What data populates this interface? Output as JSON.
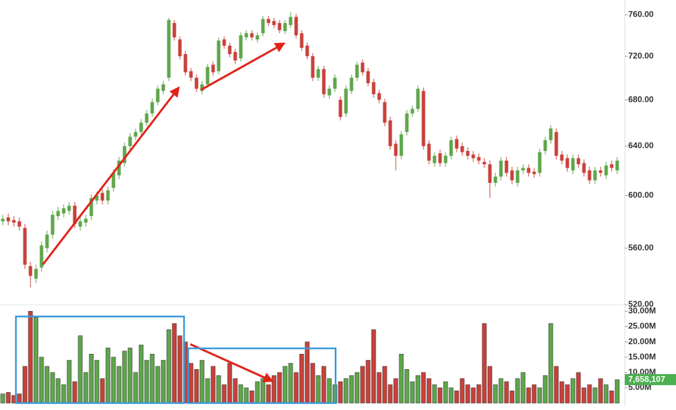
{
  "chart_data": {
    "type": "candlestick",
    "log_y": true,
    "up_color": "#5ea64b",
    "down_color": "#c9413a",
    "ylim": [
      520,
      775
    ],
    "yticks": [
      {
        "value": 520,
        "label": "520.00"
      },
      {
        "value": 560,
        "label": "560.00"
      },
      {
        "value": 600,
        "label": "600.00"
      },
      {
        "value": 640,
        "label": "640.00"
      },
      {
        "value": 680,
        "label": "680.00"
      },
      {
        "value": 720,
        "label": "720.00"
      },
      {
        "value": 760,
        "label": "760.00"
      }
    ],
    "vol_ylim": [
      0,
      31
    ],
    "vol_yticks": [
      {
        "value": 5,
        "label": "5.00M"
      },
      {
        "value": 10,
        "label": "10.00M"
      },
      {
        "value": 15,
        "label": "15.00M"
      },
      {
        "value": 20,
        "label": "20.00M"
      },
      {
        "value": 25,
        "label": "25.00M"
      },
      {
        "value": 30,
        "label": "30.00M"
      }
    ],
    "volume_last_label": "7,658,107",
    "open": [
      580,
      583,
      581,
      580,
      575,
      547,
      538,
      546,
      560,
      570,
      584,
      586,
      588,
      592,
      576,
      579,
      584,
      596,
      602,
      596,
      606,
      616,
      626,
      640,
      648,
      652,
      660,
      668,
      678,
      688,
      700,
      752,
      736,
      722,
      706,
      700,
      688,
      694,
      712,
      706,
      736,
      730,
      724,
      718,
      738,
      742,
      736,
      742,
      756,
      754,
      752,
      744,
      750,
      758,
      742,
      730,
      720,
      700,
      708,
      684,
      690,
      680,
      668,
      688,
      700,
      714,
      706,
      696,
      686,
      678,
      662,
      642,
      632,
      652,
      668,
      672,
      688,
      642,
      626,
      634,
      626,
      632,
      646,
      640,
      636,
      633,
      631,
      627,
      625,
      610,
      615,
      628,
      620,
      610,
      620,
      622,
      619,
      618,
      636,
      645,
      652,
      633,
      630,
      620,
      630,
      626,
      620,
      612,
      620,
      616,
      625,
      620
    ],
    "high": [
      585,
      586,
      584,
      583,
      578,
      550,
      548,
      565,
      573,
      588,
      591,
      593,
      595,
      595,
      583,
      585,
      601,
      603,
      605,
      607,
      621,
      631,
      643,
      651,
      655,
      663,
      671,
      681,
      693,
      697,
      757,
      755,
      739,
      725,
      709,
      703,
      697,
      713,
      715,
      738,
      739,
      733,
      727,
      743,
      745,
      745,
      743,
      759,
      759,
      757,
      755,
      755,
      763,
      761,
      745,
      733,
      723,
      711,
      711,
      693,
      703,
      683,
      693,
      703,
      715,
      717,
      709,
      699,
      689,
      681,
      665,
      645,
      653,
      671,
      675,
      693,
      691,
      645,
      635,
      637,
      635,
      648,
      649,
      643,
      639,
      636,
      634,
      630,
      628,
      618,
      631,
      631,
      623,
      623,
      625,
      625,
      622,
      638,
      648,
      658,
      655,
      636,
      633,
      633,
      633,
      629,
      623,
      623,
      623,
      627,
      628,
      631
    ],
    "low": [
      577,
      577,
      576,
      573,
      545,
      532,
      535,
      543,
      557,
      567,
      581,
      583,
      585,
      575,
      573,
      576,
      581,
      593,
      593,
      593,
      603,
      613,
      623,
      637,
      645,
      649,
      657,
      665,
      675,
      685,
      697,
      735,
      717,
      702,
      697,
      687,
      685,
      691,
      702,
      703,
      727,
      719,
      713,
      715,
      735,
      735,
      733,
      739,
      749,
      747,
      742,
      741,
      747,
      737,
      725,
      717,
      697,
      697,
      682,
      681,
      687,
      662,
      665,
      685,
      697,
      702,
      692,
      682,
      677,
      657,
      637,
      620,
      629,
      649,
      665,
      669,
      637,
      625,
      623,
      623,
      623,
      629,
      635,
      632,
      629,
      627,
      625,
      622,
      598,
      607,
      612,
      615,
      609,
      607,
      617,
      615,
      614,
      615,
      633,
      642,
      629,
      625,
      619,
      617,
      622,
      615,
      609,
      609,
      615,
      613,
      619,
      617
    ],
    "close": [
      582,
      580,
      579,
      576,
      548,
      540,
      545,
      562,
      570,
      585,
      588,
      590,
      592,
      578,
      580,
      582,
      598,
      600,
      596,
      604,
      618,
      628,
      640,
      648,
      652,
      660,
      668,
      678,
      690,
      694,
      755,
      738,
      720,
      705,
      700,
      690,
      694,
      710,
      705,
      735,
      730,
      722,
      716,
      740,
      742,
      738,
      740,
      756,
      752,
      750,
      745,
      752,
      758,
      740,
      728,
      720,
      700,
      708,
      685,
      690,
      700,
      665,
      690,
      700,
      712,
      705,
      695,
      685,
      680,
      660,
      640,
      632,
      650,
      668,
      672,
      690,
      640,
      628,
      632,
      626,
      632,
      645,
      638,
      635,
      632,
      630,
      628,
      625,
      610,
      615,
      628,
      618,
      612,
      620,
      622,
      618,
      617,
      635,
      645,
      655,
      632,
      628,
      622,
      630,
      625,
      618,
      612,
      620,
      618,
      624,
      622,
      628
    ],
    "volume": [
      3,
      3.5,
      2.5,
      3,
      12,
      30,
      28,
      15,
      12,
      10,
      8,
      6,
      14,
      7,
      22,
      10,
      16,
      14,
      8,
      18,
      15,
      12,
      17,
      18,
      10,
      19,
      14,
      16,
      12,
      14,
      24,
      26,
      22,
      20,
      13,
      11,
      14,
      8,
      12,
      9,
      6,
      13,
      8,
      6,
      5,
      4,
      7,
      8,
      6,
      9,
      10,
      12,
      13,
      10,
      16,
      20,
      13,
      9,
      12,
      8,
      6,
      7,
      8,
      9,
      10,
      12,
      14,
      24,
      10,
      12,
      6,
      8,
      16,
      11,
      7,
      9,
      10,
      8,
      6,
      5,
      7,
      5,
      4,
      8,
      6,
      5,
      6,
      26,
      12,
      6,
      8,
      7,
      4,
      8,
      10,
      5,
      6,
      5,
      9,
      26,
      12,
      7,
      6,
      8,
      10,
      5,
      6,
      5,
      8,
      6,
      4,
      7.658107
    ]
  }
}
